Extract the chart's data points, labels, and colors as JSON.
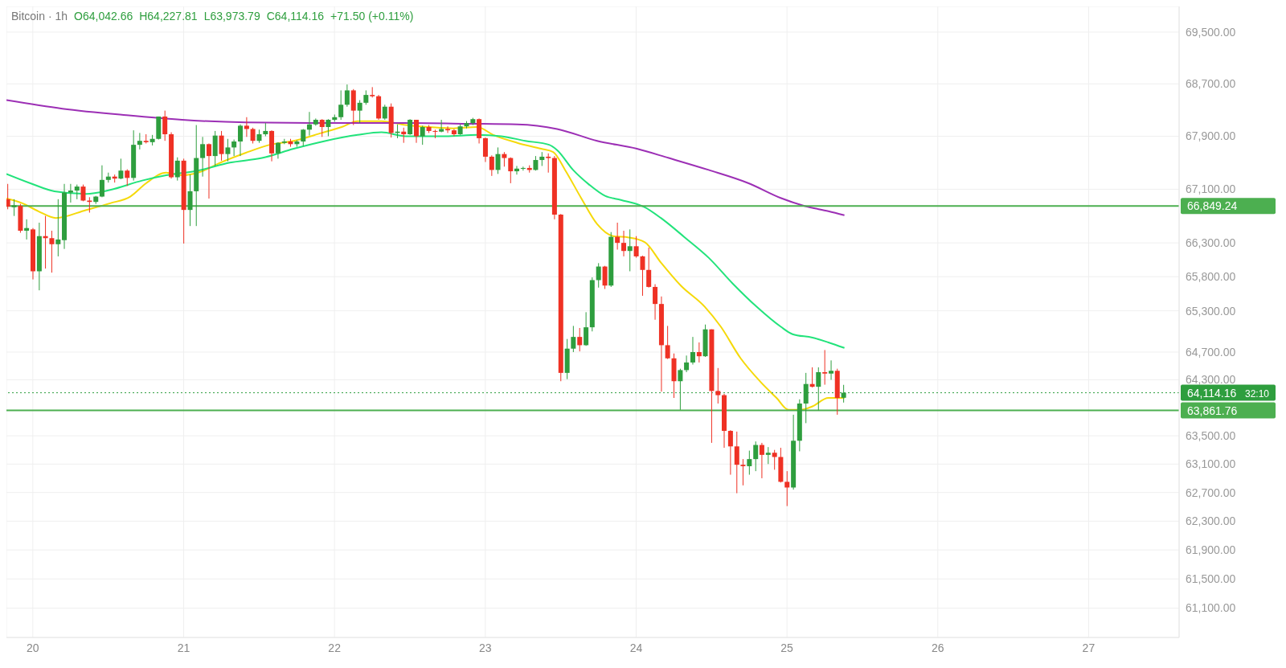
{
  "chart_data": {
    "type": "candlestick",
    "title": "Bitcoin · 1h",
    "log": true,
    "grid": true,
    "annotations": [
      "O64,042.66",
      "H64,227.81",
      "L63,973.79",
      "C64,114.16",
      "+71.50 (+0.11%)",
      "32:10"
    ],
    "xlim": [
      19.825,
      27.6
    ],
    "xticks": [
      20,
      21,
      22,
      23,
      24,
      25,
      26,
      27
    ],
    "ylim": [
      60700,
      69900
    ],
    "yticks": [
      {
        "value": 61100,
        "label": "61,100.00"
      },
      {
        "value": 61500,
        "label": "61,500.00"
      },
      {
        "value": 61900,
        "label": "61,900.00"
      },
      {
        "value": 62300,
        "label": "62,300.00"
      },
      {
        "value": 62700,
        "label": "62,700.00"
      },
      {
        "value": 63100,
        "label": "63,100.00"
      },
      {
        "value": 63500,
        "label": "63,500.00"
      },
      {
        "value": 64300,
        "label": "64,300.00"
      },
      {
        "value": 64700,
        "label": "64,700.00"
      },
      {
        "value": 65300,
        "label": "65,300.00"
      },
      {
        "value": 65800,
        "label": "65,800.00"
      },
      {
        "value": 66300,
        "label": "66,300.00"
      },
      {
        "value": 67100,
        "label": "67,100.00"
      },
      {
        "value": 67900,
        "label": "67,900.00"
      },
      {
        "value": 68700,
        "label": "68,700.00"
      },
      {
        "value": 69500,
        "label": "69,500.00"
      }
    ],
    "ref_lines": [
      {
        "axis": "y",
        "value": 66849.24,
        "label": "66,849.24",
        "color": "#4caf50"
      },
      {
        "axis": "y",
        "value": 63861.76,
        "label": "63,861.76",
        "color": "#4caf50"
      },
      {
        "axis": "y",
        "value": 64114.16,
        "label": "64,114.16",
        "color": "#2e9e3e",
        "line_style": "dotted"
      }
    ],
    "x": [
      19.833,
      19.875,
      19.917,
      19.958,
      20,
      20.042,
      20.083,
      20.125,
      20.167,
      20.208,
      20.25,
      20.292,
      20.333,
      20.375,
      20.417,
      20.458,
      20.5,
      20.542,
      20.583,
      20.625,
      20.667,
      20.708,
      20.75,
      20.792,
      20.833,
      20.875,
      20.917,
      20.958,
      21,
      21.042,
      21.083,
      21.125,
      21.167,
      21.208,
      21.25,
      21.292,
      21.333,
      21.375,
      21.417,
      21.458,
      21.5,
      21.542,
      21.583,
      21.625,
      21.667,
      21.708,
      21.75,
      21.792,
      21.833,
      21.875,
      21.917,
      21.958,
      22,
      22.042,
      22.083,
      22.125,
      22.167,
      22.208,
      22.25,
      22.292,
      22.333,
      22.375,
      22.417,
      22.458,
      22.5,
      22.542,
      22.583,
      22.625,
      22.667,
      22.708,
      22.75,
      22.792,
      22.833,
      22.875,
      22.917,
      22.958,
      23,
      23.042,
      23.083,
      23.125,
      23.167,
      23.208,
      23.25,
      23.292,
      23.333,
      23.375,
      23.417,
      23.458,
      23.5,
      23.542,
      23.583,
      23.625,
      23.667,
      23.708,
      23.75,
      23.792,
      23.833,
      23.875,
      23.917,
      23.958,
      24,
      24.042,
      24.083,
      24.125,
      24.167,
      24.208,
      24.25,
      24.292,
      24.333,
      24.375,
      24.417,
      24.458,
      24.5,
      24.542,
      24.583,
      24.625,
      24.667,
      24.708,
      24.75,
      24.792,
      24.833,
      24.875,
      24.917,
      24.958,
      25,
      25.042,
      25.083,
      25.125,
      25.167,
      25.208,
      25.25,
      25.292,
      25.333,
      25.375
    ],
    "ohlc": [
      [
        66950,
        67180,
        66800,
        66840
      ],
      [
        66830,
        66950,
        66700,
        66860
      ],
      [
        66850,
        66880,
        66450,
        66480
      ],
      [
        66480,
        66650,
        66350,
        66520
      ],
      [
        66500,
        66520,
        65760,
        65880
      ],
      [
        65880,
        66600,
        65600,
        66400
      ],
      [
        66400,
        66700,
        65920,
        66370
      ],
      [
        66370,
        66480,
        65860,
        66280
      ],
      [
        66280,
        66950,
        66100,
        66350
      ],
      [
        66340,
        67180,
        66210,
        67050
      ],
      [
        67050,
        67180,
        66900,
        67080
      ],
      [
        67080,
        67170,
        66950,
        67140
      ],
      [
        67140,
        67170,
        66920,
        66930
      ],
      [
        66930,
        66980,
        66750,
        66910
      ],
      [
        66910,
        67000,
        66880,
        66990
      ],
      [
        66990,
        67460,
        66980,
        67240
      ],
      [
        67240,
        67350,
        67200,
        67290
      ],
      [
        67290,
        67320,
        67200,
        67260
      ],
      [
        67260,
        67560,
        67250,
        67380
      ],
      [
        67380,
        67400,
        67150,
        67270
      ],
      [
        67270,
        67990,
        67230,
        67770
      ],
      [
        67770,
        67950,
        67700,
        67830
      ],
      [
        67830,
        67930,
        67790,
        67810
      ],
      [
        67810,
        67920,
        67760,
        67860
      ],
      [
        67860,
        68200,
        67850,
        68200
      ],
      [
        68200,
        68290,
        67830,
        67930
      ],
      [
        67930,
        67960,
        67260,
        67280
      ],
      [
        67280,
        67580,
        67230,
        67530
      ],
      [
        67530,
        67560,
        66290,
        66790
      ],
      [
        66790,
        67320,
        66550,
        67070
      ],
      [
        67070,
        68070,
        66550,
        67570
      ],
      [
        67570,
        67890,
        67290,
        67780
      ],
      [
        67780,
        67790,
        66960,
        67600
      ],
      [
        67600,
        67980,
        67450,
        67910
      ],
      [
        67910,
        67980,
        67530,
        67630
      ],
      [
        67630,
        67860,
        67520,
        67730
      ],
      [
        67730,
        67850,
        67600,
        67820
      ],
      [
        67820,
        68080,
        67600,
        68060
      ],
      [
        68060,
        68190,
        67890,
        68010
      ],
      [
        68010,
        68030,
        67790,
        67830
      ],
      [
        67830,
        68000,
        67800,
        67930
      ],
      [
        67930,
        68100,
        67900,
        67980
      ],
      [
        67980,
        67990,
        67520,
        67640
      ],
      [
        67640,
        67810,
        67560,
        67800
      ],
      [
        67800,
        67860,
        67780,
        67820
      ],
      [
        67820,
        67860,
        67740,
        67780
      ],
      [
        67780,
        67840,
        67740,
        67820
      ],
      [
        67820,
        68010,
        67750,
        68000
      ],
      [
        68000,
        68270,
        67910,
        68080
      ],
      [
        68080,
        68170,
        68060,
        68150
      ],
      [
        68150,
        68160,
        67890,
        68040
      ],
      [
        68040,
        68160,
        67900,
        68150
      ],
      [
        68150,
        68230,
        68120,
        68190
      ],
      [
        68190,
        68600,
        68150,
        68380
      ],
      [
        68380,
        68690,
        68350,
        68600
      ],
      [
        68600,
        68620,
        68070,
        68290
      ],
      [
        68290,
        68450,
        68100,
        68410
      ],
      [
        68410,
        68600,
        68380,
        68530
      ],
      [
        68530,
        68650,
        68490,
        68510
      ],
      [
        68510,
        68530,
        68150,
        68170
      ],
      [
        68170,
        68380,
        68150,
        68350
      ],
      [
        68350,
        68400,
        67880,
        67950
      ],
      [
        67950,
        68080,
        67870,
        67970
      ],
      [
        67970,
        68030,
        67800,
        67930
      ],
      [
        67930,
        68160,
        67920,
        68150
      ],
      [
        68150,
        68150,
        67800,
        67900
      ],
      [
        67900,
        68060,
        67770,
        68040
      ],
      [
        68040,
        68070,
        67950,
        67980
      ],
      [
        67980,
        68000,
        67870,
        67970
      ],
      [
        67970,
        68150,
        67960,
        68010
      ],
      [
        68010,
        68050,
        67950,
        67990
      ],
      [
        67990,
        68010,
        67900,
        67930
      ],
      [
        67930,
        68080,
        67920,
        68050
      ],
      [
        68050,
        68130,
        68020,
        68100
      ],
      [
        68100,
        68180,
        68070,
        68160
      ],
      [
        68160,
        68170,
        67790,
        67870
      ],
      [
        67870,
        67880,
        67510,
        67590
      ],
      [
        67590,
        67610,
        67300,
        67390
      ],
      [
        67390,
        67730,
        67330,
        67630
      ],
      [
        67630,
        67660,
        67440,
        67570
      ],
      [
        67570,
        67580,
        67190,
        67370
      ],
      [
        67370,
        67450,
        67320,
        67410
      ],
      [
        67410,
        67440,
        67380,
        67420
      ],
      [
        67420,
        67460,
        67350,
        67390
      ],
      [
        67390,
        67600,
        67380,
        67540
      ],
      [
        67540,
        67660,
        67450,
        67590
      ],
      [
        67590,
        67640,
        67350,
        67570
      ],
      [
        67570,
        67600,
        66650,
        66720
      ],
      [
        66720,
        66730,
        64280,
        64400
      ],
      [
        64400,
        64890,
        64310,
        64750
      ],
      [
        64750,
        65080,
        64700,
        64920
      ],
      [
        64920,
        65050,
        64710,
        64800
      ],
      [
        64800,
        65280,
        64790,
        65060
      ],
      [
        65060,
        65790,
        65000,
        65750
      ],
      [
        65750,
        66000,
        65640,
        65950
      ],
      [
        65950,
        65960,
        65620,
        65670
      ],
      [
        65670,
        66460,
        65650,
        66390
      ],
      [
        66390,
        66600,
        66200,
        66300
      ],
      [
        66300,
        66480,
        66100,
        66180
      ],
      [
        66180,
        66500,
        65880,
        66250
      ],
      [
        66250,
        66400,
        66080,
        66100
      ],
      [
        66100,
        66110,
        65520,
        65900
      ],
      [
        65900,
        66230,
        65640,
        65650
      ],
      [
        65650,
        65690,
        65170,
        65400
      ],
      [
        65400,
        65510,
        64130,
        64800
      ],
      [
        64800,
        65080,
        64600,
        64610
      ],
      [
        64610,
        64680,
        64040,
        64280
      ],
      [
        64280,
        64460,
        63870,
        64440
      ],
      [
        64440,
        64650,
        64410,
        64550
      ],
      [
        64550,
        64920,
        64520,
        64700
      ],
      [
        64700,
        64840,
        64550,
        64640
      ],
      [
        64640,
        65100,
        64630,
        65030
      ],
      [
        65030,
        65030,
        63400,
        64140
      ],
      [
        64140,
        64470,
        63960,
        64080
      ],
      [
        64080,
        64100,
        63330,
        63570
      ],
      [
        63570,
        63580,
        62950,
        63350
      ],
      [
        63350,
        63560,
        62690,
        63090
      ],
      [
        63090,
        63170,
        62800,
        63070
      ],
      [
        63070,
        63290,
        62950,
        63170
      ],
      [
        63170,
        63420,
        63000,
        63370
      ],
      [
        63370,
        63400,
        62900,
        63230
      ],
      [
        63230,
        63340,
        63100,
        63260
      ],
      [
        63260,
        63300,
        63020,
        63200
      ],
      [
        63200,
        63330,
        62840,
        62850
      ],
      [
        62850,
        63000,
        62510,
        62770
      ],
      [
        62770,
        63800,
        62740,
        63430
      ],
      [
        63430,
        64020,
        63280,
        63960
      ],
      [
        63960,
        64400,
        63680,
        64240
      ],
      [
        64240,
        64480,
        64190,
        64200
      ],
      [
        64200,
        64480,
        63860,
        64410
      ],
      [
        64410,
        64730,
        64230,
        64390
      ],
      [
        64390,
        64580,
        64300,
        64430
      ],
      [
        64430,
        64460,
        63800,
        64040
      ],
      [
        64042.66,
        64227.81,
        63973.79,
        64114.16
      ]
    ],
    "series": [
      {
        "type": "line",
        "color": "#f5d90a",
        "x": [
          19.825,
          19.931,
          20.037,
          20.153,
          20.354,
          20.513,
          20.646,
          20.751,
          20.884,
          20.989,
          21.095,
          21.254,
          21.413,
          21.571,
          21.73,
          21.915,
          22.048,
          22.153,
          22.312,
          22.471,
          22.63,
          22.788,
          22.947,
          23.053,
          23.212,
          23.37,
          23.45,
          23.529,
          23.635,
          23.741,
          23.847,
          23.952,
          24.058,
          24.164,
          24.296,
          24.455,
          24.561,
          24.693,
          24.825,
          24.931,
          25.011,
          25.09,
          25.169,
          25.275,
          25.381
        ],
        "values": [
          66960,
          66890,
          66770,
          66670,
          66790,
          66890,
          66990,
          67190,
          67350,
          67310,
          67350,
          67510,
          67650,
          67770,
          67830,
          67950,
          68040,
          68130,
          68130,
          68070,
          68040,
          68020,
          68040,
          67920,
          67800,
          67710,
          67660,
          67390,
          66970,
          66580,
          66400,
          66380,
          66310,
          66010,
          65670,
          65360,
          65070,
          64610,
          64270,
          64040,
          63870,
          63870,
          63920,
          64040,
          64040
        ]
      },
      {
        "type": "line",
        "color": "#22e37b",
        "x": [
          19.825,
          19.984,
          20.143,
          20.354,
          20.513,
          20.725,
          20.884,
          21.095,
          21.307,
          21.519,
          21.73,
          21.942,
          22.153,
          22.312,
          22.471,
          22.735,
          22.947,
          23.106,
          23.265,
          23.423,
          23.476,
          23.582,
          23.688,
          23.794,
          23.899,
          24.058,
          24.164,
          24.323,
          24.481,
          24.64,
          24.799,
          24.958,
          25.037,
          25.169,
          25.275,
          25.381
        ],
        "values": [
          67330,
          67190,
          67070,
          67030,
          67090,
          67230,
          67310,
          67380,
          67500,
          67570,
          67710,
          67830,
          67920,
          67960,
          67900,
          67900,
          67920,
          67900,
          67830,
          67770,
          67690,
          67390,
          67170,
          67000,
          66940,
          66830,
          66670,
          66380,
          66080,
          65700,
          65360,
          65070,
          64960,
          64910,
          64840,
          64760
        ]
      },
      {
        "type": "line",
        "color": "#9c2fb5",
        "x": [
          19.825,
          20.196,
          20.619,
          20.989,
          21.413,
          21.942,
          22.471,
          22.894,
          23.212,
          23.476,
          23.741,
          24.005,
          24.217,
          24.481,
          24.746,
          24.958,
          25.116,
          25.275,
          25.381
        ],
        "values": [
          68450,
          68320,
          68220,
          68150,
          68110,
          68100,
          68100,
          68090,
          68080,
          68010,
          67830,
          67710,
          67570,
          67390,
          67190,
          66970,
          66850,
          66770,
          66710
        ]
      }
    ]
  }
}
